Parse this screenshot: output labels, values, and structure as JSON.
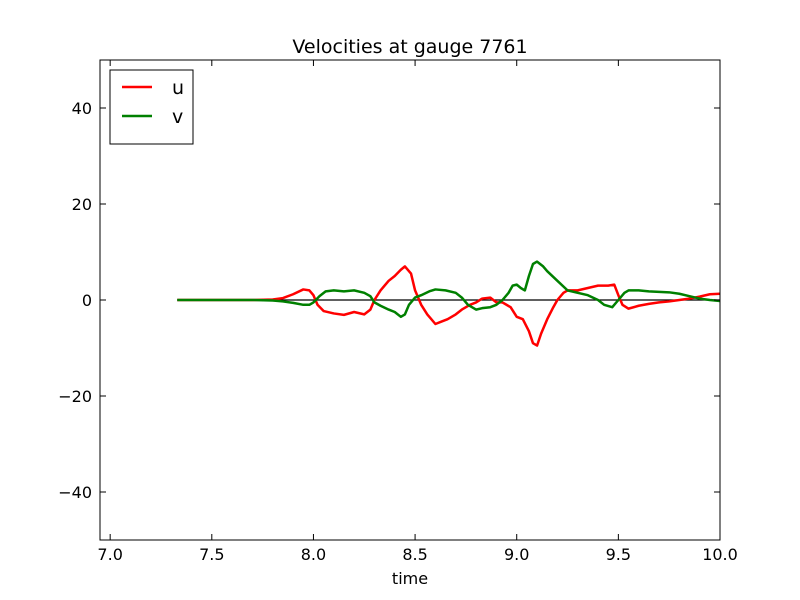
{
  "chart_data": {
    "type": "line",
    "title": "Velocities at gauge 7761",
    "xlabel": "time",
    "ylabel": "",
    "xlim": [
      6.95,
      10.0
    ],
    "ylim": [
      -50,
      50
    ],
    "xticks": [
      7.0,
      7.5,
      8.0,
      8.5,
      9.0,
      9.5,
      10.0
    ],
    "xtick_labels": [
      "7.0",
      "7.5",
      "8.0",
      "8.5",
      "9.0",
      "9.5",
      "10.0"
    ],
    "yticks": [
      -40,
      -20,
      0,
      20,
      40
    ],
    "ytick_labels": [
      "−40",
      "−20",
      "0",
      "20",
      "40"
    ],
    "grid": false,
    "legend_position": "top-left",
    "reference_line": {
      "y": 0,
      "x_range": [
        7.33,
        10.0
      ],
      "color": "#000000"
    },
    "series": [
      {
        "name": "u",
        "color": "#ff0000",
        "points": [
          [
            7.33,
            0.0
          ],
          [
            7.5,
            0.0
          ],
          [
            7.7,
            0.0
          ],
          [
            7.8,
            0.1
          ],
          [
            7.85,
            0.4
          ],
          [
            7.9,
            1.2
          ],
          [
            7.95,
            2.2
          ],
          [
            7.98,
            2.0
          ],
          [
            8.0,
            1.0
          ],
          [
            8.02,
            -1.0
          ],
          [
            8.05,
            -2.3
          ],
          [
            8.1,
            -2.8
          ],
          [
            8.15,
            -3.1
          ],
          [
            8.2,
            -2.5
          ],
          [
            8.25,
            -3.0
          ],
          [
            8.28,
            -2.0
          ],
          [
            8.3,
            0.0
          ],
          [
            8.33,
            2.0
          ],
          [
            8.37,
            4.0
          ],
          [
            8.4,
            5.0
          ],
          [
            8.43,
            6.3
          ],
          [
            8.45,
            7.0
          ],
          [
            8.48,
            5.5
          ],
          [
            8.5,
            2.0
          ],
          [
            8.53,
            -1.0
          ],
          [
            8.56,
            -3.0
          ],
          [
            8.6,
            -5.0
          ],
          [
            8.63,
            -4.5
          ],
          [
            8.66,
            -4.0
          ],
          [
            8.7,
            -3.0
          ],
          [
            8.73,
            -2.0
          ],
          [
            8.77,
            -1.0
          ],
          [
            8.8,
            -0.5
          ],
          [
            8.83,
            0.3
          ],
          [
            8.87,
            0.5
          ],
          [
            8.9,
            -0.5
          ],
          [
            8.93,
            -0.5
          ],
          [
            8.97,
            -1.5
          ],
          [
            9.0,
            -3.5
          ],
          [
            9.03,
            -4.0
          ],
          [
            9.06,
            -6.5
          ],
          [
            9.08,
            -9.0
          ],
          [
            9.1,
            -9.5
          ],
          [
            9.12,
            -7.0
          ],
          [
            9.15,
            -4.0
          ],
          [
            9.18,
            -1.5
          ],
          [
            9.2,
            0.0
          ],
          [
            9.23,
            1.5
          ],
          [
            9.25,
            2.0
          ],
          [
            9.3,
            2.0
          ],
          [
            9.35,
            2.5
          ],
          [
            9.4,
            3.0
          ],
          [
            9.45,
            3.0
          ],
          [
            9.48,
            3.2
          ],
          [
            9.5,
            1.0
          ],
          [
            9.52,
            -1.0
          ],
          [
            9.55,
            -1.8
          ],
          [
            9.6,
            -1.2
          ],
          [
            9.65,
            -0.8
          ],
          [
            9.7,
            -0.5
          ],
          [
            9.75,
            -0.3
          ],
          [
            9.8,
            0.0
          ],
          [
            9.85,
            0.3
          ],
          [
            9.9,
            0.7
          ],
          [
            9.95,
            1.2
          ],
          [
            10.0,
            1.3
          ]
        ]
      },
      {
        "name": "v",
        "color": "#008000",
        "points": [
          [
            7.33,
            0.0
          ],
          [
            7.5,
            0.0
          ],
          [
            7.7,
            0.0
          ],
          [
            7.8,
            -0.1
          ],
          [
            7.85,
            -0.3
          ],
          [
            7.9,
            -0.6
          ],
          [
            7.95,
            -1.0
          ],
          [
            7.98,
            -1.0
          ],
          [
            8.0,
            -0.5
          ],
          [
            8.03,
            0.8
          ],
          [
            8.06,
            1.8
          ],
          [
            8.1,
            2.0
          ],
          [
            8.15,
            1.8
          ],
          [
            8.2,
            2.0
          ],
          [
            8.25,
            1.5
          ],
          [
            8.28,
            0.8
          ],
          [
            8.3,
            -0.5
          ],
          [
            8.33,
            -1.2
          ],
          [
            8.37,
            -2.0
          ],
          [
            8.4,
            -2.5
          ],
          [
            8.43,
            -3.5
          ],
          [
            8.45,
            -3.0
          ],
          [
            8.47,
            -1.0
          ],
          [
            8.5,
            0.5
          ],
          [
            8.53,
            1.0
          ],
          [
            8.57,
            1.8
          ],
          [
            8.6,
            2.2
          ],
          [
            8.65,
            2.0
          ],
          [
            8.7,
            1.5
          ],
          [
            8.73,
            0.5
          ],
          [
            8.76,
            -1.0
          ],
          [
            8.8,
            -2.0
          ],
          [
            8.83,
            -1.7
          ],
          [
            8.87,
            -1.5
          ],
          [
            8.9,
            -1.0
          ],
          [
            8.93,
            0.0
          ],
          [
            8.96,
            1.5
          ],
          [
            8.98,
            3.0
          ],
          [
            9.0,
            3.2
          ],
          [
            9.02,
            2.5
          ],
          [
            9.04,
            2.0
          ],
          [
            9.06,
            5.0
          ],
          [
            9.08,
            7.5
          ],
          [
            9.1,
            8.0
          ],
          [
            9.13,
            7.0
          ],
          [
            9.15,
            6.0
          ],
          [
            9.2,
            4.0
          ],
          [
            9.25,
            2.0
          ],
          [
            9.3,
            1.5
          ],
          [
            9.35,
            1.0
          ],
          [
            9.4,
            0.0
          ],
          [
            9.43,
            -1.0
          ],
          [
            9.47,
            -1.5
          ],
          [
            9.5,
            0.0
          ],
          [
            9.53,
            1.5
          ],
          [
            9.55,
            2.0
          ],
          [
            9.6,
            2.0
          ],
          [
            9.65,
            1.8
          ],
          [
            9.7,
            1.7
          ],
          [
            9.75,
            1.6
          ],
          [
            9.8,
            1.3
          ],
          [
            9.85,
            0.8
          ],
          [
            9.9,
            0.3
          ],
          [
            9.95,
            0.0
          ],
          [
            10.0,
            -0.2
          ]
        ]
      }
    ]
  }
}
